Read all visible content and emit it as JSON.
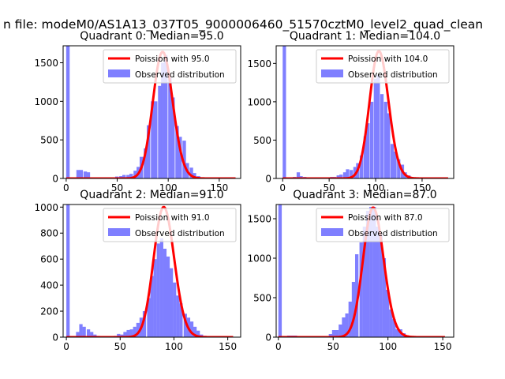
{
  "figure": {
    "suptitle": "n file: modeM0/AS1A13_037T05_9000006460_51570cztM0_level2_quad_clean"
  },
  "colors": {
    "poisson": "#ff0000",
    "observed": "#7f7fff",
    "axes": "#000000",
    "legend_border": "#cccccc"
  },
  "chart_data": [
    {
      "type": "bar",
      "title": "Quadrant 0: Median=95.0",
      "median": 95.0,
      "xlim": [
        -3,
        171
      ],
      "ylim": [
        0,
        1720
      ],
      "xticks": [
        0,
        50,
        100,
        150
      ],
      "yticks": [
        0,
        500,
        1000,
        1500
      ],
      "legend_position": "upper right",
      "series": [
        {
          "name": "Poission with 95.0",
          "kind": "line",
          "lambda": 95.0,
          "peak": 1640,
          "x_range": [
            0,
            166
          ]
        },
        {
          "name": "Observed distribution",
          "kind": "histogram",
          "bin_width": 3.4,
          "x": [
            0,
            10,
            13,
            17,
            20,
            45,
            48,
            52,
            55,
            59,
            62,
            66,
            69,
            72,
            76,
            79,
            83,
            86,
            90,
            93,
            96,
            100,
            103,
            107,
            110,
            114,
            117,
            121,
            124,
            128,
            131
          ],
          "values": [
            1720,
            110,
            110,
            90,
            80,
            10,
            25,
            30,
            45,
            45,
            60,
            100,
            150,
            280,
            390,
            690,
            1000,
            1000,
            1200,
            1500,
            1600,
            1300,
            1050,
            680,
            540,
            490,
            200,
            140,
            70,
            30,
            10
          ]
        }
      ]
    },
    {
      "type": "bar",
      "title": "Quadrant 1: Median=104.0",
      "median": 104.0,
      "xlim": [
        -7,
        184
      ],
      "ylim": [
        0,
        1730
      ],
      "xticks": [
        0,
        50,
        100,
        150
      ],
      "yticks": [
        0,
        500,
        1000,
        1500
      ],
      "legend_position": "upper right",
      "series": [
        {
          "name": "Poission with 104.0",
          "kind": "line",
          "lambda": 104.0,
          "peak": 1660,
          "x_range": [
            0,
            178
          ]
        },
        {
          "name": "Observed distribution",
          "kind": "histogram",
          "bin_width": 3.6,
          "x": [
            0,
            11,
            15,
            18,
            22,
            25,
            47,
            51,
            54,
            58,
            61,
            65,
            68,
            72,
            76,
            79,
            83,
            87,
            90,
            94,
            98,
            101,
            105,
            109,
            112,
            116,
            119,
            123,
            127,
            130,
            134,
            138
          ],
          "values": [
            1730,
            20,
            80,
            30,
            20,
            10,
            10,
            20,
            20,
            40,
            50,
            80,
            120,
            110,
            150,
            200,
            300,
            550,
            720,
            1000,
            1300,
            1350,
            1100,
            1000,
            850,
            450,
            350,
            250,
            180,
            80,
            40,
            10
          ]
        }
      ]
    },
    {
      "type": "bar",
      "title": "Quadrant 2: Median=91.0",
      "median": 91.0,
      "xlim": [
        -3,
        162
      ],
      "ylim": [
        0,
        1020
      ],
      "xticks": [
        0,
        50,
        100,
        150
      ],
      "yticks": [
        0,
        200,
        400,
        600,
        800,
        1000
      ],
      "legend_position": "upper right",
      "series": [
        {
          "name": "Poission with 91.0",
          "kind": "line",
          "lambda": 91.0,
          "peak": 1000,
          "x_range": [
            0,
            155
          ]
        },
        {
          "name": "Observed distribution",
          "kind": "histogram",
          "bin_width": 3.1,
          "x": [
            0,
            9,
            12,
            15,
            19,
            22,
            25,
            28,
            44,
            47,
            50,
            53,
            56,
            59,
            62,
            65,
            68,
            71,
            75,
            78,
            81,
            84,
            87,
            90,
            93,
            96,
            99,
            102,
            105,
            109,
            112,
            115,
            118,
            121,
            124,
            127
          ],
          "values": [
            1020,
            40,
            100,
            80,
            60,
            40,
            20,
            10,
            10,
            25,
            20,
            40,
            55,
            60,
            80,
            110,
            150,
            200,
            300,
            470,
            600,
            720,
            760,
            680,
            620,
            530,
            420,
            320,
            260,
            180,
            150,
            120,
            80,
            50,
            20,
            10
          ]
        }
      ]
    },
    {
      "type": "bar",
      "title": "Quadrant 3: Median=87.0",
      "median": 87.0,
      "xlim": [
        -2,
        160
      ],
      "ylim": [
        0,
        1680
      ],
      "xticks": [
        0,
        50,
        100,
        150
      ],
      "yticks": [
        0,
        500,
        1000,
        1500
      ],
      "legend_position": "upper right",
      "series": [
        {
          "name": "Poission with 87.0",
          "kind": "line",
          "lambda": 87.0,
          "peak": 1640,
          "x_range": [
            0,
            152
          ]
        },
        {
          "name": "Observed distribution",
          "kind": "histogram",
          "bin_width": 3.1,
          "x": [
            0,
            8,
            11,
            14,
            17,
            20,
            46,
            49,
            52,
            55,
            58,
            61,
            64,
            67,
            70,
            74,
            77,
            80,
            83,
            86,
            89,
            92,
            95,
            98,
            101,
            104,
            107,
            110,
            113,
            116,
            119
          ],
          "values": [
            1680,
            20,
            20,
            20,
            10,
            10,
            40,
            90,
            90,
            160,
            250,
            300,
            450,
            700,
            1050,
            1200,
            1400,
            1600,
            1650,
            1650,
            1400,
            1300,
            1000,
            600,
            350,
            230,
            100,
            100,
            50,
            20,
            10
          ]
        }
      ]
    }
  ]
}
